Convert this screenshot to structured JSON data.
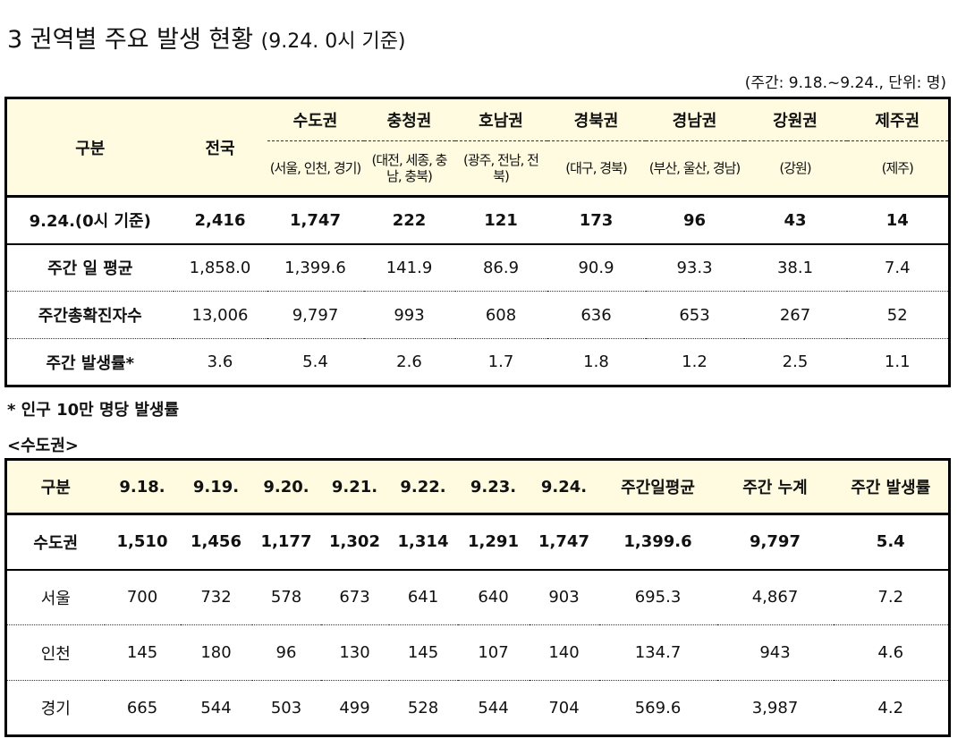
{
  "header": {
    "title": "3  권역별 주요 발생 현황",
    "subtitle": "(9.24. 0시 기준)",
    "unit_note": "(주간: 9.18.~9.24., 단위: 명)"
  },
  "table1": {
    "corner": "구분",
    "national": "전국",
    "regions": [
      {
        "name": "수도권",
        "sub": "(서울, 인천, 경기)"
      },
      {
        "name": "충청권",
        "sub": "(대전, 세종, 충남, 충북)"
      },
      {
        "name": "호남권",
        "sub": "(광주, 전남, 전북)"
      },
      {
        "name": "경북권",
        "sub": "(대구, 경북)"
      },
      {
        "name": "경남권",
        "sub": "(부산, 울산, 경남)"
      },
      {
        "name": "강원권",
        "sub": "(강원)"
      },
      {
        "name": "제주권",
        "sub": "(제주)"
      }
    ],
    "rows": [
      {
        "label": "9.24.(0시 기준)",
        "values": [
          "2,416",
          "1,747",
          "222",
          "121",
          "173",
          "96",
          "43",
          "14"
        ]
      },
      {
        "label": "주간 일 평균",
        "values": [
          "1,858.0",
          "1,399.6",
          "141.9",
          "86.9",
          "90.9",
          "93.3",
          "38.1",
          "7.4"
        ]
      },
      {
        "label": "주간총확진자수",
        "values": [
          "13,006",
          "9,797",
          "993",
          "608",
          "636",
          "653",
          "267",
          "52"
        ]
      },
      {
        "label": "주간 발생률*",
        "values": [
          "3.6",
          "5.4",
          "2.6",
          "1.7",
          "1.8",
          "1.2",
          "2.5",
          "1.1"
        ]
      }
    ]
  },
  "footnote": "* 인구 10만 명당 발생률",
  "section_label": "<수도권>",
  "table2": {
    "columns": [
      "구분",
      "9.18.",
      "9.19.",
      "9.20.",
      "9.21.",
      "9.22.",
      "9.23.",
      "9.24.",
      "주간일평균",
      "주간 누계",
      "주간 발생률"
    ],
    "rows": [
      [
        "수도권",
        "1,510",
        "1,456",
        "1,177",
        "1,302",
        "1,314",
        "1,291",
        "1,747",
        "1,399.6",
        "9,797",
        "5.4"
      ],
      [
        "서울",
        "700",
        "732",
        "578",
        "673",
        "641",
        "640",
        "903",
        "695.3",
        "4,867",
        "7.2"
      ],
      [
        "인천",
        "145",
        "180",
        "96",
        "130",
        "145",
        "107",
        "140",
        "134.7",
        "943",
        "4.6"
      ],
      [
        "경기",
        "665",
        "544",
        "503",
        "499",
        "528",
        "544",
        "704",
        "569.6",
        "3,987",
        "4.2"
      ]
    ]
  }
}
